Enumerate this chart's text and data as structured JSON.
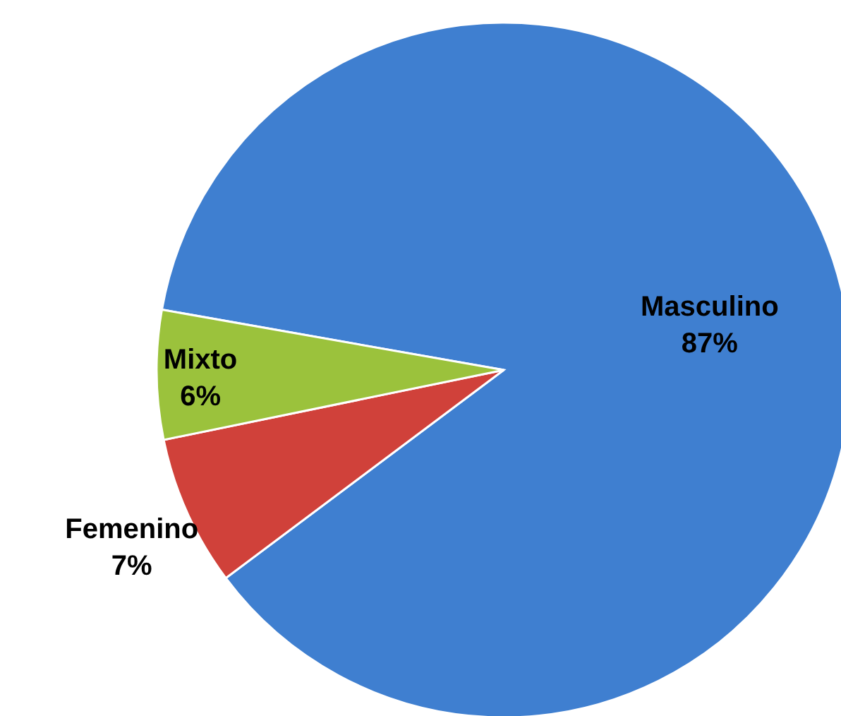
{
  "chart_data": {
    "type": "pie",
    "categories": [
      "Masculino",
      "Femenino",
      "Mixto"
    ],
    "values": [
      87,
      7,
      6
    ],
    "colors": [
      "#3f7fd0",
      "#d0413a",
      "#9bc23c"
    ],
    "value_labels": [
      "87%",
      "7%",
      "6%"
    ]
  }
}
